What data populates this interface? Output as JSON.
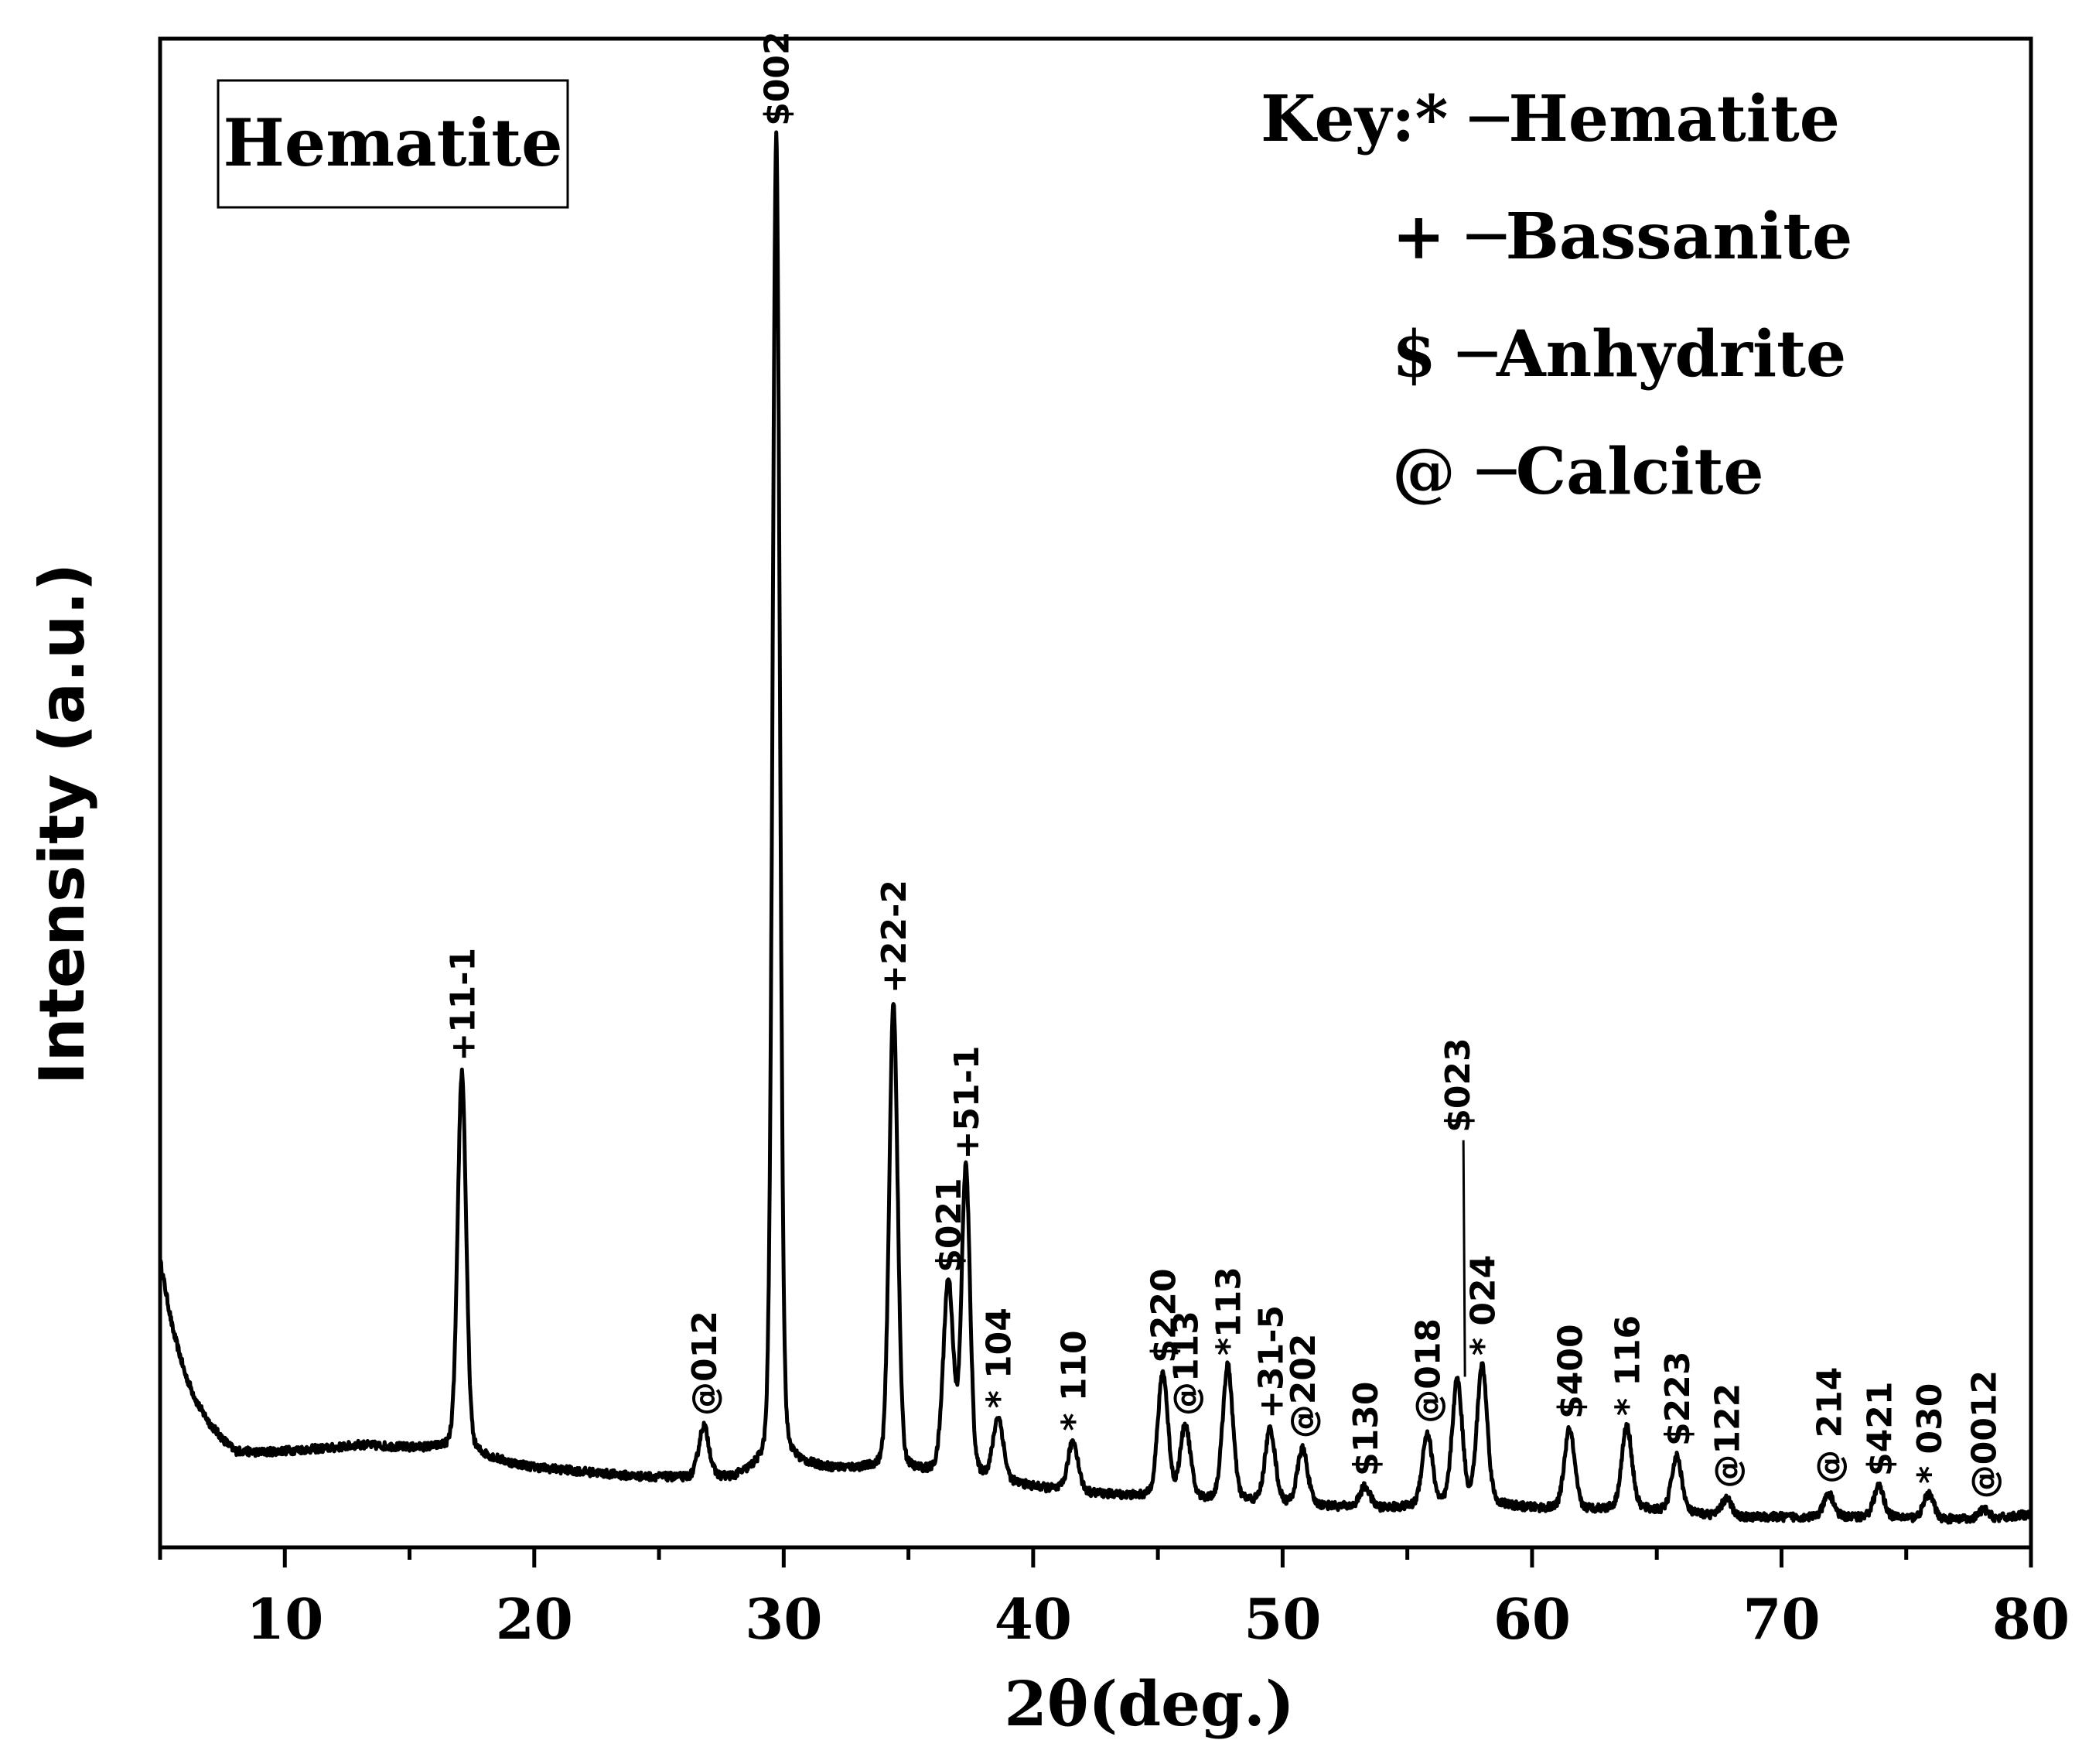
{
  "chart_data": {
    "type": "line",
    "title": "",
    "sample_label": "Hematite",
    "xlabel": "2θ(deg.)",
    "ylabel": "Intensity (a.u.)",
    "xlim": [
      5,
      80
    ],
    "ylim": [
      0,
      100
    ],
    "x_ticks": [
      10,
      20,
      30,
      40,
      50,
      60,
      70,
      80
    ],
    "y_ticks": false,
    "grid": false,
    "line_color": "#000000",
    "legend": {
      "placement": "top-right",
      "entries": [
        {
          "text": "Key:* ─Hematite"
        },
        {
          "text": "+ ─Bassanite"
        },
        {
          "text": "$ ─Anhydrite"
        },
        {
          "text": "@ ─Calcite"
        }
      ]
    },
    "baseline": [
      [
        5.0,
        19.0
      ],
      [
        5.5,
        14.5
      ],
      [
        6.0,
        11.5
      ],
      [
        6.5,
        9.5
      ],
      [
        7.0,
        8.2
      ],
      [
        7.5,
        7.2
      ],
      [
        8.0,
        6.4
      ],
      [
        9.0,
        6.3
      ],
      [
        10.0,
        6.4
      ],
      [
        11.0,
        6.5
      ],
      [
        12.0,
        6.6
      ],
      [
        13.0,
        6.8
      ],
      [
        14.0,
        6.7
      ],
      [
        15.0,
        6.6
      ],
      [
        16.0,
        6.6
      ],
      [
        17.0,
        6.5
      ],
      [
        19.0,
        5.6
      ],
      [
        20.0,
        5.3
      ],
      [
        22.0,
        5.0
      ],
      [
        24.0,
        4.7
      ],
      [
        26.0,
        4.6
      ],
      [
        28.0,
        4.6
      ],
      [
        29.0,
        5.2
      ],
      [
        30.0,
        5.6
      ],
      [
        32.0,
        5.2
      ],
      [
        34.0,
        5.2
      ],
      [
        36.0,
        4.9
      ],
      [
        38.0,
        4.6
      ],
      [
        40.0,
        4.0
      ],
      [
        42.0,
        3.6
      ],
      [
        44.0,
        3.4
      ],
      [
        46.0,
        3.2
      ],
      [
        48.0,
        3.1
      ],
      [
        50.0,
        2.9
      ],
      [
        52.0,
        2.7
      ],
      [
        54.0,
        2.6
      ],
      [
        56.0,
        2.7
      ],
      [
        58.0,
        2.9
      ],
      [
        60.0,
        2.6
      ],
      [
        62.0,
        2.5
      ],
      [
        64.0,
        2.6
      ],
      [
        66.0,
        2.3
      ],
      [
        68.0,
        2.0
      ],
      [
        70.0,
        2.0
      ],
      [
        72.0,
        2.0
      ],
      [
        74.0,
        2.0
      ],
      [
        76.0,
        1.9
      ],
      [
        78.0,
        1.8
      ],
      [
        80.0,
        2.2
      ]
    ],
    "peaks": [
      {
        "x": 17.1,
        "y": 31.5,
        "label": "+11-1"
      },
      {
        "x": 26.8,
        "y": 8.0,
        "label": "@012"
      },
      {
        "x": 29.7,
        "y": 93.5,
        "label": "$002"
      },
      {
        "x": 34.4,
        "y": 36.0,
        "label": "+22-2"
      },
      {
        "x": 36.6,
        "y": 17.5,
        "label": "$021"
      },
      {
        "x": 37.3,
        "y": 25.0,
        "label": "+51-1"
      },
      {
        "x": 38.6,
        "y": 8.5,
        "label": "* 104"
      },
      {
        "x": 41.6,
        "y": 7.0,
        "label": "* 110"
      },
      {
        "x": 45.2,
        "y": 11.5,
        "label": "$220"
      },
      {
        "x": 46.1,
        "y": 8.0,
        "label": "@113"
      },
      {
        "x": 47.8,
        "y": 12.0,
        "label": "*113"
      },
      {
        "x": 49.5,
        "y": 7.8,
        "label": "+31-5"
      },
      {
        "x": 50.8,
        "y": 6.5,
        "label": "@202"
      },
      {
        "x": 53.3,
        "y": 4.0,
        "label": "$130"
      },
      {
        "x": 55.8,
        "y": 7.5,
        "label": "@018"
      },
      {
        "x": 57.0,
        "y": 11.0,
        "label": "$023"
      },
      {
        "x": 58.0,
        "y": 12.0,
        "label": "* 024"
      },
      {
        "x": 61.5,
        "y": 7.8,
        "label": "$400"
      },
      {
        "x": 63.8,
        "y": 8.0,
        "label": "* 116"
      },
      {
        "x": 65.8,
        "y": 6.0,
        "label": "$223"
      },
      {
        "x": 67.8,
        "y": 3.2,
        "label": "@122"
      },
      {
        "x": 71.9,
        "y": 3.5,
        "label": "@ 214"
      },
      {
        "x": 73.9,
        "y": 4.0,
        "label": "$421"
      },
      {
        "x": 75.9,
        "y": 3.5,
        "label": "* 030"
      },
      {
        "x": 78.1,
        "y": 2.5,
        "label": "@0012"
      }
    ]
  }
}
